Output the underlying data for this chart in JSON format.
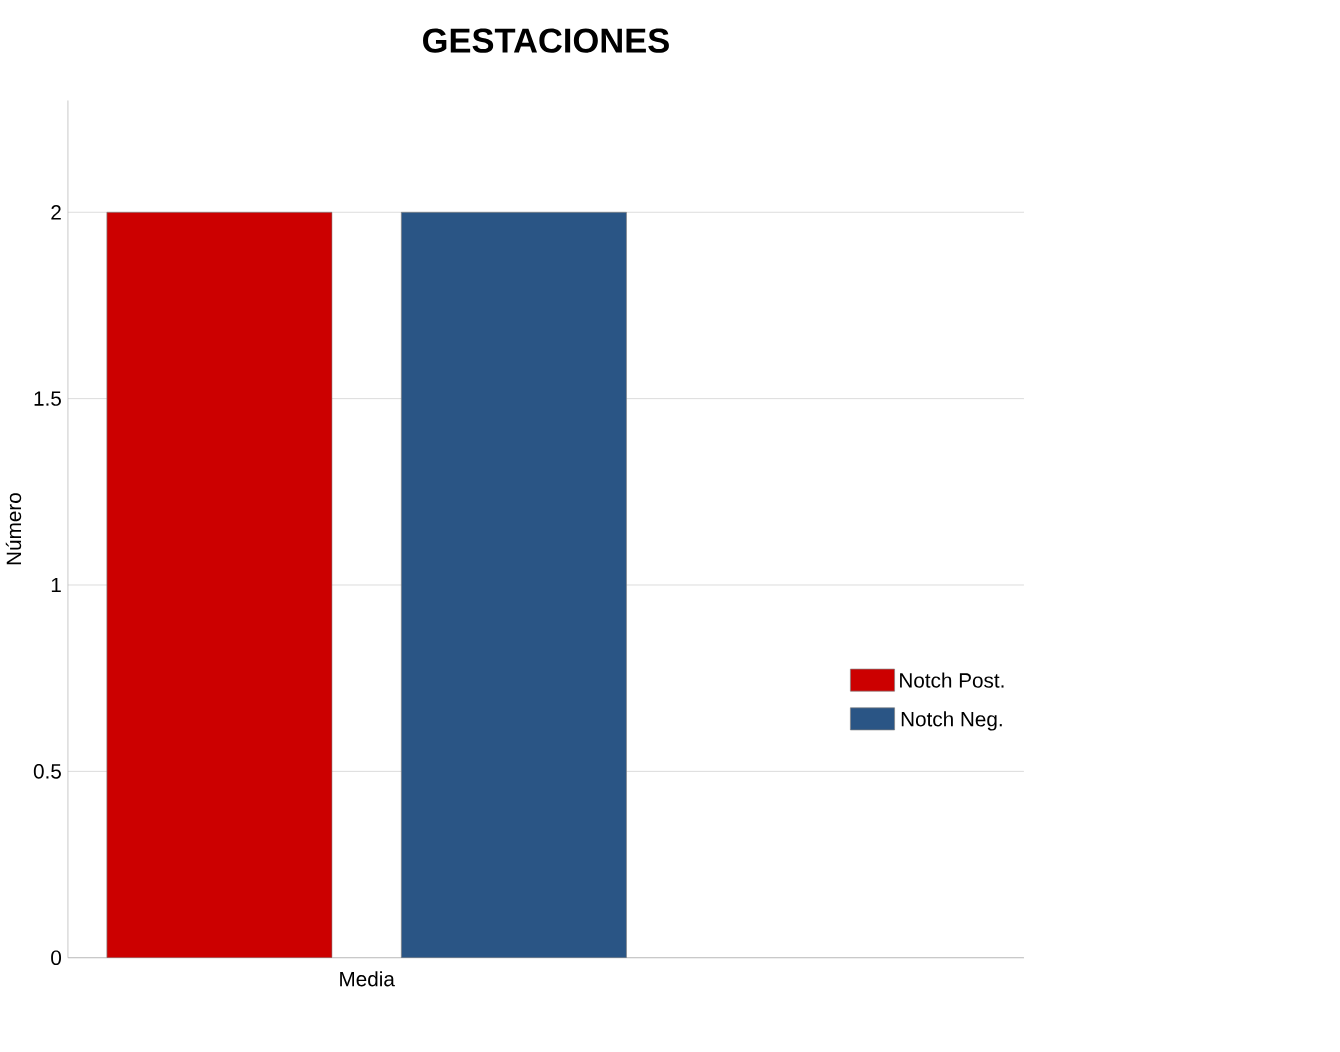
{
  "chart_data": {
    "type": "bar",
    "title": "GESTACIONES",
    "ylabel": "Número",
    "categories": [
      "Media"
    ],
    "series": [
      {
        "name": "Notch Post.",
        "color": "#cc0000",
        "values": [
          2
        ]
      },
      {
        "name": "Notch Neg.",
        "color": "#2a5585",
        "values": [
          2
        ]
      }
    ],
    "ylim": [
      0,
      2.3
    ],
    "yticks": [
      0,
      0.5,
      1,
      1.5,
      2
    ],
    "grid": "y",
    "legend": "right"
  }
}
